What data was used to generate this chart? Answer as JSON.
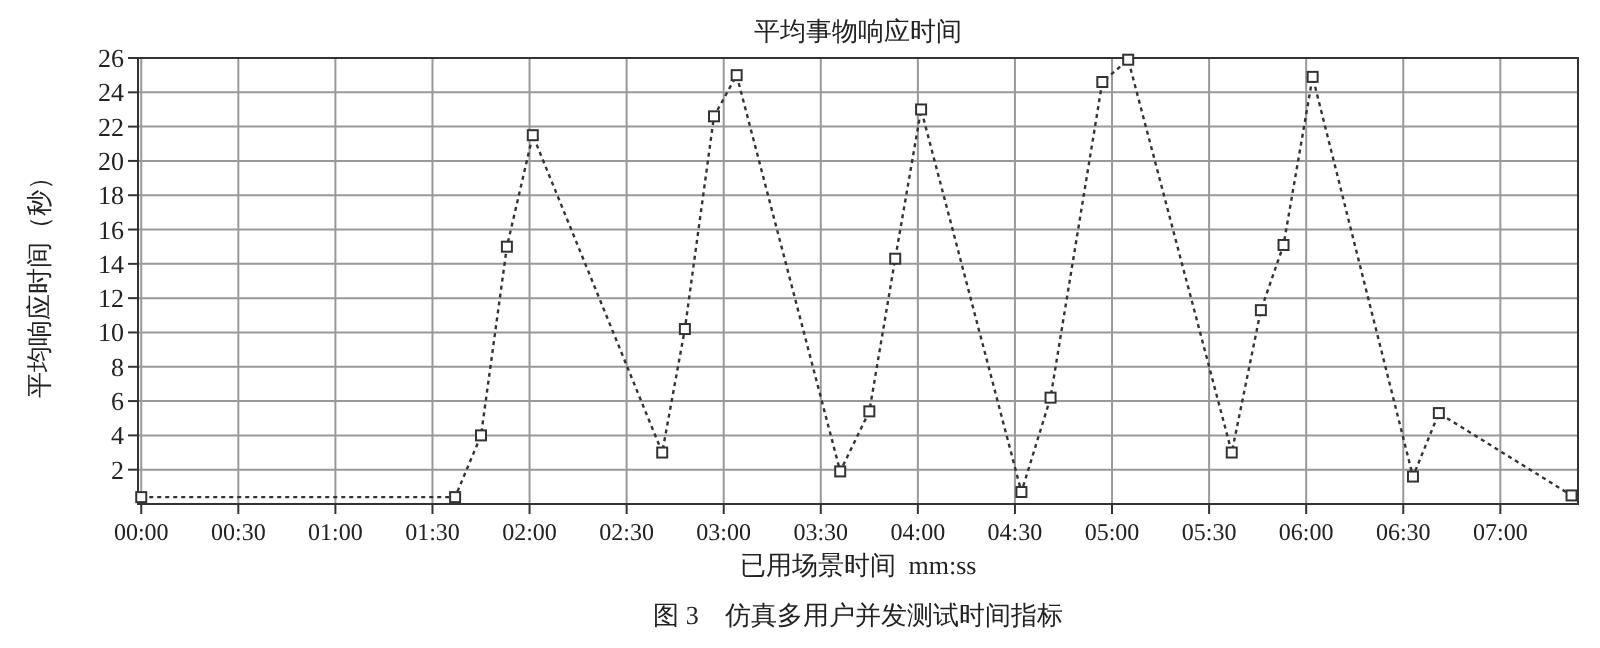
{
  "chart_data": {
    "type": "line",
    "title": "平均事物响应时间",
    "xlabel": "已用场景时间  mm:ss",
    "ylabel": "平均响应时间（秒）",
    "annotations": [
      "图 3　仿真多用户并发测试时间指标"
    ],
    "x": [
      0,
      97,
      105,
      113,
      121,
      161,
      168,
      177,
      184,
      216,
      225,
      233,
      241,
      272,
      281,
      297,
      305,
      337,
      346,
      353,
      362,
      393,
      401,
      442
    ],
    "series": [
      {
        "color": "#333333",
        "values": [
          0.4,
          0.4,
          4,
          15,
          21.5,
          3,
          10.2,
          22.6,
          25,
          1.9,
          5.4,
          14.3,
          23,
          0.7,
          6.2,
          24.6,
          25.9,
          3,
          11.3,
          15.1,
          24.9,
          1.6,
          5.3,
          0.5
        ]
      }
    ],
    "xlim": [
      -1,
      444
    ],
    "ylim": [
      0,
      26
    ],
    "xticks": [
      {
        "value": 0,
        "label": "00:00"
      },
      {
        "value": 30,
        "label": "00:30"
      },
      {
        "value": 60,
        "label": "01:00"
      },
      {
        "value": 90,
        "label": "01:30"
      },
      {
        "value": 120,
        "label": "02:00"
      },
      {
        "value": 150,
        "label": "02:30"
      },
      {
        "value": 180,
        "label": "03:00"
      },
      {
        "value": 210,
        "label": "03:30"
      },
      {
        "value": 240,
        "label": "04:00"
      },
      {
        "value": 270,
        "label": "04:30"
      },
      {
        "value": 300,
        "label": "05:00"
      },
      {
        "value": 330,
        "label": "05:30"
      },
      {
        "value": 360,
        "label": "06:00"
      },
      {
        "value": 390,
        "label": "06:30"
      },
      {
        "value": 420,
        "label": "07:00"
      }
    ],
    "yticks": [
      2,
      4,
      6,
      8,
      10,
      12,
      14,
      16,
      18,
      20,
      22,
      24,
      26
    ],
    "grid": true,
    "marker": "square",
    "line_style": "dotted"
  }
}
